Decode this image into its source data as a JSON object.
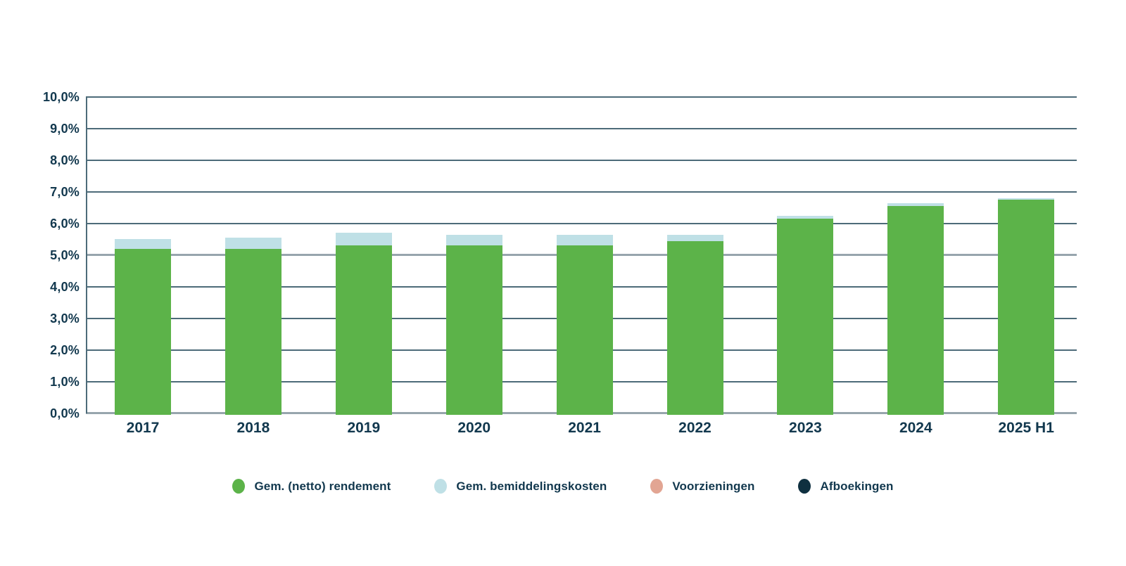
{
  "chart_data": {
    "type": "bar",
    "stacked": true,
    "title": "",
    "xlabel": "",
    "ylabel": "",
    "categories": [
      "2017",
      "2018",
      "2019",
      "2020",
      "2021",
      "2022",
      "2023",
      "2024",
      "2025 H1"
    ],
    "series": [
      {
        "name": "Gem. (netto) rendement",
        "color_key": "green",
        "values": [
          5.25,
          5.25,
          5.35,
          5.35,
          5.35,
          5.5,
          6.2,
          6.6,
          6.8
        ]
      },
      {
        "name": "Gem. bemiddelingskosten",
        "color_key": "lightblue",
        "values": [
          0.3,
          0.35,
          0.4,
          0.35,
          0.35,
          0.2,
          0.1,
          0.1,
          0.05
        ]
      },
      {
        "name": "Voorzieningen",
        "color_key": "salmon",
        "values": [
          0,
          0,
          0,
          0,
          0,
          0,
          0,
          0,
          0
        ]
      },
      {
        "name": "Afboekingen",
        "color_key": "navy",
        "values": [
          0,
          0,
          0,
          0,
          0,
          0,
          0,
          0,
          0
        ]
      }
    ],
    "stack_totals": [
      5.55,
      5.6,
      5.75,
      5.7,
      5.7,
      5.7,
      6.3,
      6.7,
      6.85
    ],
    "y_axis": {
      "min": 0,
      "max": 10,
      "step": 1,
      "tick_labels": [
        "0,0%",
        "1,0%",
        "2,0%",
        "3,0%",
        "4,0%",
        "5,0%",
        "6,0%",
        "7,0%",
        "8,0%",
        "9,0%",
        "10,0%"
      ]
    },
    "grid": true,
    "legend_position": "bottom"
  },
  "legend": {
    "items": [
      {
        "label": "Gem. (netto) rendement",
        "color_key": "green"
      },
      {
        "label": "Gem. bemiddelingskosten",
        "color_key": "lightblue"
      },
      {
        "label": "Voorzieningen",
        "color_key": "salmon"
      },
      {
        "label": "Afboekingen",
        "color_key": "navy"
      }
    ]
  },
  "colors": {
    "green": "#5CB349",
    "lightblue": "#BFE0E6",
    "salmon": "#E2A593",
    "navy": "#0F3040",
    "text": "#12384E",
    "grid_dark": "#4D6B79",
    "grid_light": "#97A5AD",
    "background": "#FFFFFF"
  }
}
